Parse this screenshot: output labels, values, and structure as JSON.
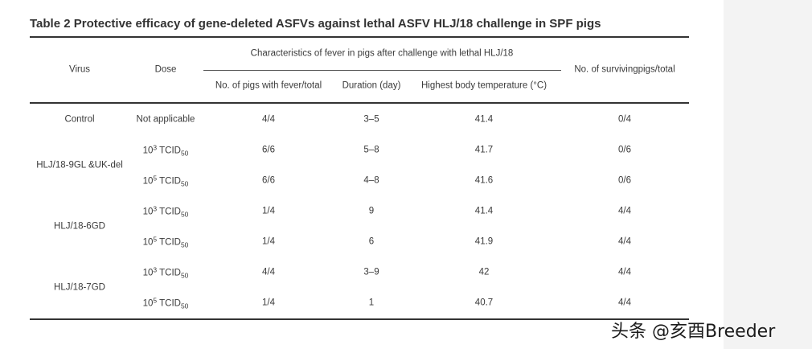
{
  "table": {
    "title": "Table 2  Protective efficacy of gene-deleted ASFVs against lethal ASFV HLJ/18 challenge in SPF pigs",
    "headers": {
      "virus": "Virus",
      "dose": "Dose",
      "group": "Characteristics of fever in pigs after challenge with lethal HLJ/18",
      "fever": "No. of pigs with fever/total",
      "duration": "Duration (day)",
      "temp": "Highest body temperature (°C)",
      "survival": "No. of survivingpigs/total"
    },
    "dose_unit": {
      "base": "10",
      "unit": "TCID",
      "unit_sub": "50"
    },
    "groups": [
      {
        "virus": "Control"
      },
      {
        "virus": "HLJ/18-9GL &UK-del"
      },
      {
        "virus": "HLJ/18-6GD"
      },
      {
        "virus": "HLJ/18-7GD"
      }
    ],
    "rows": [
      {
        "dose_text": "Not applicable",
        "exp": "",
        "fever": "4/4",
        "duration": "3–5",
        "temp": "41.4",
        "survival": "0/4"
      },
      {
        "dose_text": "",
        "exp": "3",
        "fever": "6/6",
        "duration": "5–8",
        "temp": "41.7",
        "survival": "0/6"
      },
      {
        "dose_text": "",
        "exp": "5",
        "fever": "6/6",
        "duration": "4–8",
        "temp": "41.6",
        "survival": "0/6"
      },
      {
        "dose_text": "",
        "exp": "3",
        "fever": "1/4",
        "duration": "9",
        "temp": "41.4",
        "survival": "4/4"
      },
      {
        "dose_text": "",
        "exp": "5",
        "fever": "1/4",
        "duration": "6",
        "temp": "41.9",
        "survival": "4/4"
      },
      {
        "dose_text": "",
        "exp": "3",
        "fever": "4/4",
        "duration": "3–9",
        "temp": "42",
        "survival": "4/4"
      },
      {
        "dose_text": "",
        "exp": "5",
        "fever": "1/4",
        "duration": "1",
        "temp": "40.7",
        "survival": "4/4"
      }
    ]
  },
  "watermark": "头条 @亥酉Breeder"
}
